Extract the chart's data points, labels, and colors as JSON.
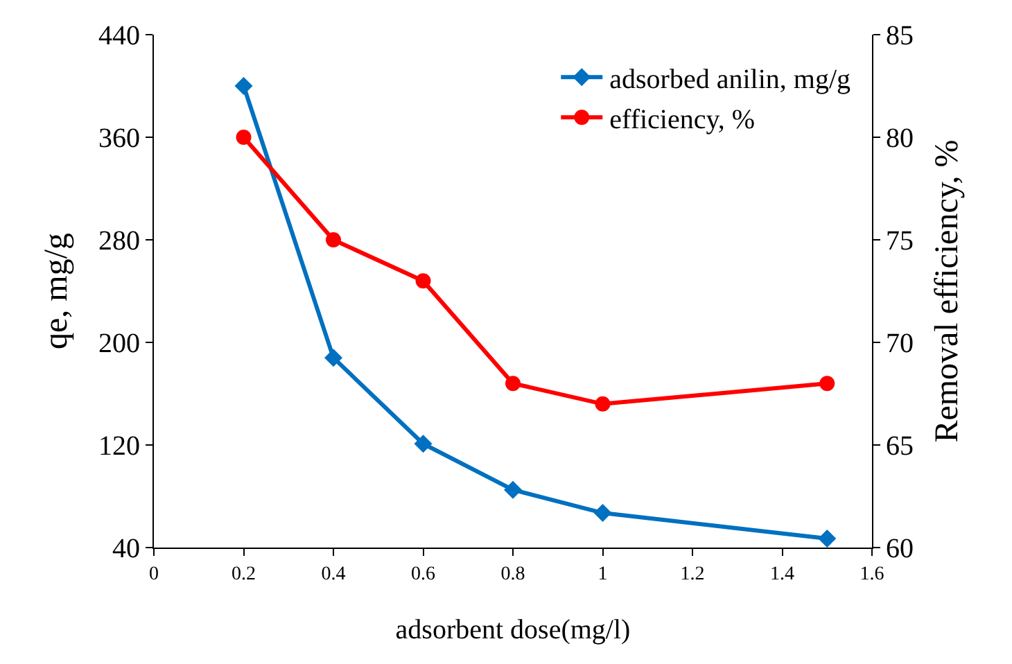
{
  "chart_data": {
    "type": "line",
    "xlabel": "adsorbent dose(mg/l)",
    "ylabel": "qe, mg/g",
    "y2label": "Removal efficiency, %",
    "x": [
      0.2,
      0.4,
      0.6,
      0.8,
      1.0,
      1.5
    ],
    "series": [
      {
        "name": "adsorbed anilin, mg/g",
        "color": "#0070c0",
        "values": [
          400,
          188,
          121,
          85,
          67,
          47
        ],
        "marker": "diamond"
      },
      {
        "name": "efficiency, %",
        "color": "#ff0000",
        "values": [
          80,
          75,
          73,
          68,
          67,
          68
        ],
        "marker": "circle",
        "axis": "y2"
      }
    ],
    "xlim": [
      0,
      1.6
    ],
    "xticks": [
      0,
      0.2,
      0.4,
      0.6,
      0.8,
      1,
      1.2,
      1.4,
      1.6
    ],
    "ylim": [
      40,
      440
    ],
    "yticks": [
      40,
      120,
      200,
      280,
      360,
      440
    ],
    "y2lim": [
      60,
      85
    ],
    "y2ticks": [
      60,
      65,
      70,
      75,
      80,
      85
    ],
    "legend": "top right"
  }
}
